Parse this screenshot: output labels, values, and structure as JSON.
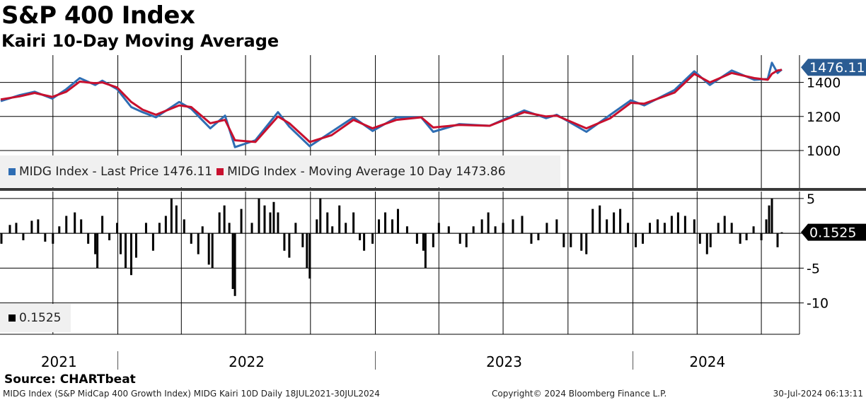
{
  "header": {
    "title": "S&P 400 Index",
    "subtitle": "Kairi 10-Day Moving Average"
  },
  "legend": {
    "price_label": "MIDG Index - Last Price 1476.11",
    "ma_label": "MIDG Index - Moving Average 10 Day 1473.86",
    "kairi_label": "0.1525"
  },
  "footer": {
    "source": "Source: CHARTbeat",
    "description": "MIDG Index (S&P MidCap 400 Growth Index) MIDG Kairi 10D  Daily 18JUL2021-30JUL2024",
    "copyright": "Copyright© 2024 Bloomberg Finance L.P.",
    "timestamp": "30-Jul-2024 06:13:11"
  },
  "colors": {
    "price_line": "#2e6db3",
    "ma_line": "#c8102e",
    "price_callout": "#2a5c93",
    "kairi_callout": "#000000",
    "bars": "#000000"
  },
  "chart_data": [
    {
      "type": "line",
      "title": "S&P 400 Index",
      "x_range": [
        "2021-07-18",
        "2024-07-30"
      ],
      "ylim": [
        780,
        1560
      ],
      "yticks": [
        1000,
        1200,
        1400
      ],
      "ytick_labels": [
        "1000",
        "1200",
        "1400"
      ],
      "year_labels": [
        "2021",
        "2022",
        "2023",
        "2024"
      ],
      "grid": true,
      "legend_position": "bottom-left",
      "last_value_label": "1476.11",
      "series": [
        {
          "name": "MIDG Index - Last Price",
          "color": "#2e6db3",
          "points": [
            [
              "2021-07-19",
              1290
            ],
            [
              "2021-08-15",
              1325
            ],
            [
              "2021-09-05",
              1345
            ],
            [
              "2021-09-30",
              1305
            ],
            [
              "2021-10-20",
              1360
            ],
            [
              "2021-11-08",
              1425
            ],
            [
              "2021-11-30",
              1385
            ],
            [
              "2021-12-10",
              1410
            ],
            [
              "2021-12-31",
              1360
            ],
            [
              "2022-01-20",
              1255
            ],
            [
              "2022-02-05",
              1225
            ],
            [
              "2022-02-24",
              1195
            ],
            [
              "2022-03-29",
              1285
            ],
            [
              "2022-04-15",
              1245
            ],
            [
              "2022-05-12",
              1130
            ],
            [
              "2022-06-02",
              1205
            ],
            [
              "2022-06-16",
              1020
            ],
            [
              "2022-07-15",
              1060
            ],
            [
              "2022-08-16",
              1225
            ],
            [
              "2022-09-01",
              1140
            ],
            [
              "2022-09-30",
              1025
            ],
            [
              "2022-10-31",
              1110
            ],
            [
              "2022-12-01",
              1195
            ],
            [
              "2022-12-28",
              1115
            ],
            [
              "2023-01-31",
              1195
            ],
            [
              "2023-03-07",
              1195
            ],
            [
              "2023-03-24",
              1110
            ],
            [
              "2023-04-30",
              1155
            ],
            [
              "2023-06-12",
              1145
            ],
            [
              "2023-07-31",
              1235
            ],
            [
              "2023-08-31",
              1190
            ],
            [
              "2023-09-15",
              1210
            ],
            [
              "2023-10-27",
              1110
            ],
            [
              "2023-11-30",
              1210
            ],
            [
              "2023-12-29",
              1295
            ],
            [
              "2024-01-17",
              1265
            ],
            [
              "2024-02-29",
              1355
            ],
            [
              "2024-03-28",
              1465
            ],
            [
              "2024-04-19",
              1385
            ],
            [
              "2024-05-20",
              1470
            ],
            [
              "2024-06-21",
              1415
            ],
            [
              "2024-07-10",
              1420
            ],
            [
              "2024-07-16",
              1515
            ],
            [
              "2024-07-24",
              1455
            ],
            [
              "2024-07-30",
              1476.11
            ]
          ]
        },
        {
          "name": "MIDG Index - Moving Average 10 Day",
          "color": "#c8102e",
          "points": [
            [
              "2021-07-19",
              1300
            ],
            [
              "2021-08-15",
              1318
            ],
            [
              "2021-09-05",
              1338
            ],
            [
              "2021-09-30",
              1315
            ],
            [
              "2021-10-20",
              1345
            ],
            [
              "2021-11-08",
              1405
            ],
            [
              "2021-11-30",
              1395
            ],
            [
              "2021-12-10",
              1400
            ],
            [
              "2021-12-31",
              1370
            ],
            [
              "2022-01-20",
              1285
            ],
            [
              "2022-02-05",
              1240
            ],
            [
              "2022-02-24",
              1210
            ],
            [
              "2022-03-29",
              1265
            ],
            [
              "2022-04-15",
              1255
            ],
            [
              "2022-05-12",
              1160
            ],
            [
              "2022-06-02",
              1180
            ],
            [
              "2022-06-16",
              1060
            ],
            [
              "2022-07-15",
              1050
            ],
            [
              "2022-08-16",
              1200
            ],
            [
              "2022-09-01",
              1160
            ],
            [
              "2022-09-30",
              1050
            ],
            [
              "2022-10-31",
              1090
            ],
            [
              "2022-12-01",
              1180
            ],
            [
              "2022-12-28",
              1130
            ],
            [
              "2023-01-31",
              1180
            ],
            [
              "2023-03-07",
              1195
            ],
            [
              "2023-03-24",
              1135
            ],
            [
              "2023-04-30",
              1150
            ],
            [
              "2023-06-12",
              1145
            ],
            [
              "2023-07-31",
              1225
            ],
            [
              "2023-08-31",
              1200
            ],
            [
              "2023-09-15",
              1205
            ],
            [
              "2023-10-27",
              1130
            ],
            [
              "2023-11-30",
              1190
            ],
            [
              "2023-12-29",
              1280
            ],
            [
              "2024-01-17",
              1275
            ],
            [
              "2024-02-29",
              1340
            ],
            [
              "2024-03-28",
              1450
            ],
            [
              "2024-04-19",
              1400
            ],
            [
              "2024-05-20",
              1455
            ],
            [
              "2024-06-21",
              1425
            ],
            [
              "2024-07-10",
              1415
            ],
            [
              "2024-07-16",
              1450
            ],
            [
              "2024-07-24",
              1470
            ],
            [
              "2024-07-30",
              1473.86
            ]
          ]
        }
      ]
    },
    {
      "type": "bar",
      "title": "Kairi 10-Day",
      "x_range": [
        "2021-07-18",
        "2024-07-30"
      ],
      "ylim": [
        -14.5,
        6
      ],
      "yticks": [
        5,
        0,
        -5,
        -10
      ],
      "ytick_labels": [
        "5",
        "",
        "-5",
        "-10"
      ],
      "grid": true,
      "last_value_label": "0.1525",
      "series": [
        {
          "name": "0.1525",
          "color": "#000000",
          "points": [
            [
              "2021-07-20",
              -1.5
            ],
            [
              "2021-08-01",
              1.2
            ],
            [
              "2021-08-10",
              1.5
            ],
            [
              "2021-08-20",
              -1.0
            ],
            [
              "2021-09-01",
              1.8
            ],
            [
              "2021-09-10",
              2.0
            ],
            [
              "2021-09-20",
              -1.2
            ],
            [
              "2021-10-01",
              -1.5
            ],
            [
              "2021-10-10",
              1.0
            ],
            [
              "2021-10-20",
              2.5
            ],
            [
              "2021-11-01",
              3.0
            ],
            [
              "2021-11-10",
              2.0
            ],
            [
              "2021-11-20",
              -1.5
            ],
            [
              "2021-11-30",
              -3.0
            ],
            [
              "2021-12-03",
              -5.0
            ],
            [
              "2021-12-10",
              2.5
            ],
            [
              "2021-12-20",
              -1.0
            ],
            [
              "2021-12-31",
              1.5
            ],
            [
              "2022-01-05",
              -3.0
            ],
            [
              "2022-01-12",
              -5.0
            ],
            [
              "2022-01-20",
              -6.0
            ],
            [
              "2022-01-27",
              -3.5
            ],
            [
              "2022-02-10",
              1.5
            ],
            [
              "2022-02-20",
              -2.5
            ],
            [
              "2022-03-01",
              1.5
            ],
            [
              "2022-03-10",
              2.5
            ],
            [
              "2022-03-18",
              5.0
            ],
            [
              "2022-03-25",
              4.0
            ],
            [
              "2022-04-05",
              2.0
            ],
            [
              "2022-04-15",
              -1.5
            ],
            [
              "2022-04-25",
              -3.0
            ],
            [
              "2022-05-01",
              1.0
            ],
            [
              "2022-05-10",
              -4.5
            ],
            [
              "2022-05-15",
              -5.0
            ],
            [
              "2022-05-25",
              3.0
            ],
            [
              "2022-06-01",
              4.0
            ],
            [
              "2022-06-08",
              1.5
            ],
            [
              "2022-06-13",
              -8.0
            ],
            [
              "2022-06-16",
              -9.0
            ],
            [
              "2022-06-25",
              3.5
            ],
            [
              "2022-07-10",
              1.5
            ],
            [
              "2022-07-20",
              5.0
            ],
            [
              "2022-07-28",
              4.0
            ],
            [
              "2022-08-05",
              3.0
            ],
            [
              "2022-08-10",
              4.5
            ],
            [
              "2022-08-16",
              3.0
            ],
            [
              "2022-08-25",
              -2.5
            ],
            [
              "2022-09-01",
              -3.5
            ],
            [
              "2022-09-10",
              1.5
            ],
            [
              "2022-09-20",
              -2.0
            ],
            [
              "2022-09-26",
              -5.0
            ],
            [
              "2022-09-30",
              -6.5
            ],
            [
              "2022-10-10",
              2.0
            ],
            [
              "2022-10-15",
              5.0
            ],
            [
              "2022-10-25",
              3.0
            ],
            [
              "2022-11-01",
              1.0
            ],
            [
              "2022-11-11",
              4.0
            ],
            [
              "2022-11-20",
              1.5
            ],
            [
              "2022-12-01",
              3.0
            ],
            [
              "2022-12-10",
              -1.0
            ],
            [
              "2022-12-16",
              -2.5
            ],
            [
              "2022-12-28",
              -1.5
            ],
            [
              "2023-01-06",
              2.0
            ],
            [
              "2023-01-15",
              3.0
            ],
            [
              "2023-01-25",
              2.0
            ],
            [
              "2023-02-02",
              3.5
            ],
            [
              "2023-02-15",
              1.0
            ],
            [
              "2023-03-01",
              -1.5
            ],
            [
              "2023-03-10",
              -2.5
            ],
            [
              "2023-03-13",
              -5.0
            ],
            [
              "2023-03-24",
              -2.0
            ],
            [
              "2023-04-01",
              1.5
            ],
            [
              "2023-04-15",
              1.0
            ],
            [
              "2023-05-01",
              -1.5
            ],
            [
              "2023-05-10",
              -2.0
            ],
            [
              "2023-05-20",
              1.0
            ],
            [
              "2023-06-01",
              2.0
            ],
            [
              "2023-06-10",
              3.0
            ],
            [
              "2023-06-20",
              1.0
            ],
            [
              "2023-07-01",
              1.5
            ],
            [
              "2023-07-15",
              2.0
            ],
            [
              "2023-07-28",
              2.5
            ],
            [
              "2023-08-10",
              -1.5
            ],
            [
              "2023-08-20",
              -1.0
            ],
            [
              "2023-09-01",
              1.5
            ],
            [
              "2023-09-15",
              2.0
            ],
            [
              "2023-09-25",
              -2.0
            ],
            [
              "2023-10-05",
              -2.0
            ],
            [
              "2023-10-20",
              -2.5
            ],
            [
              "2023-10-27",
              -3.0
            ],
            [
              "2023-11-05",
              3.5
            ],
            [
              "2023-11-15",
              4.0
            ],
            [
              "2023-11-25",
              2.0
            ],
            [
              "2023-12-05",
              3.0
            ],
            [
              "2023-12-14",
              3.5
            ],
            [
              "2023-12-25",
              1.5
            ],
            [
              "2024-01-05",
              -2.0
            ],
            [
              "2024-01-15",
              -1.5
            ],
            [
              "2024-01-25",
              1.5
            ],
            [
              "2024-02-05",
              2.0
            ],
            [
              "2024-02-15",
              1.5
            ],
            [
              "2024-02-25",
              2.5
            ],
            [
              "2024-03-05",
              3.0
            ],
            [
              "2024-03-15",
              2.5
            ],
            [
              "2024-03-28",
              2.0
            ],
            [
              "2024-04-05",
              -1.5
            ],
            [
              "2024-04-15",
              -3.0
            ],
            [
              "2024-04-20",
              -2.0
            ],
            [
              "2024-05-01",
              1.5
            ],
            [
              "2024-05-10",
              2.5
            ],
            [
              "2024-05-20",
              1.5
            ],
            [
              "2024-06-01",
              -1.5
            ],
            [
              "2024-06-10",
              -1.0
            ],
            [
              "2024-06-20",
              1.0
            ],
            [
              "2024-07-01",
              -1.0
            ],
            [
              "2024-07-08",
              2.0
            ],
            [
              "2024-07-12",
              4.0
            ],
            [
              "2024-07-16",
              5.0
            ],
            [
              "2024-07-24",
              -2.0
            ],
            [
              "2024-07-30",
              0.1525
            ]
          ]
        }
      ]
    }
  ]
}
